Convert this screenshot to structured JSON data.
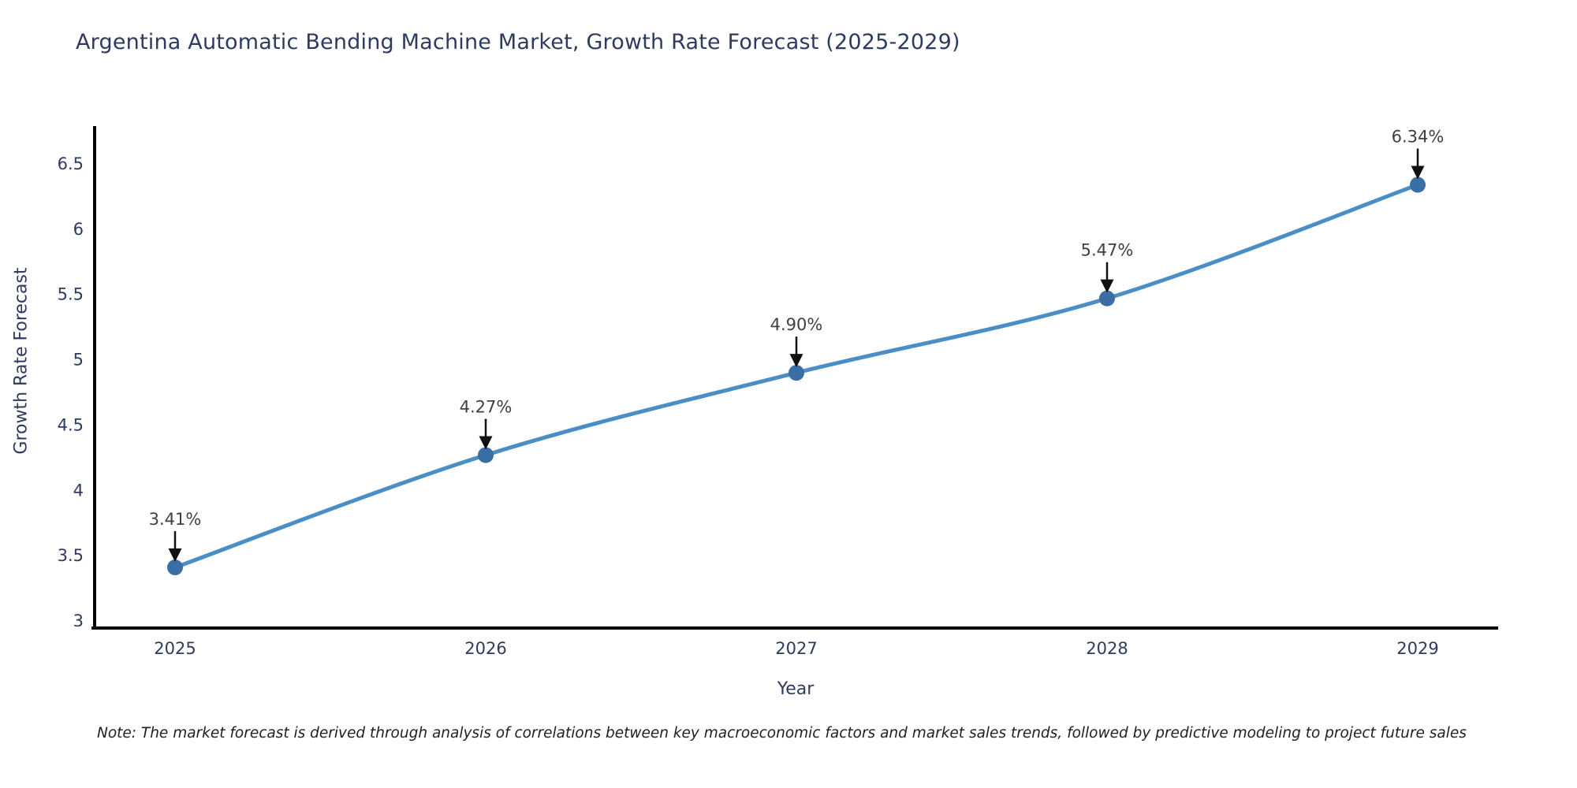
{
  "chart_data": {
    "type": "line",
    "title": "Argentina Automatic Bending Machine Market, Growth Rate Forecast (2025-2029)",
    "xlabel": "Year",
    "ylabel": "Growth Rate Forecast",
    "x": [
      "2025",
      "2026",
      "2027",
      "2028",
      "2029"
    ],
    "values": [
      3.41,
      4.27,
      4.9,
      5.47,
      6.34
    ],
    "point_labels": [
      "3.41%",
      "4.27%",
      "4.90%",
      "5.47%",
      "6.34%"
    ],
    "ylim": [
      3,
      6.9
    ],
    "yticks": [
      3,
      3.5,
      4,
      4.5,
      5,
      5.5,
      6,
      6.5
    ],
    "ytick_labels": [
      "3",
      "3.5",
      "4",
      "4.5",
      "5",
      "5.5",
      "6",
      "6.5"
    ],
    "grid": false,
    "legend": "none",
    "line_color": "#4a8ec6",
    "marker_color": "#3a6ea5",
    "arrow_color": "#111111",
    "axis_color": "#000000",
    "text_color": "#2f3a5f",
    "label_color": "#404040",
    "note_color": "#1f1f1f",
    "note": "Note: The market forecast is derived through analysis of correlations between key macroeconomic factors and market sales trends, followed by predictive modeling to project future sales"
  }
}
